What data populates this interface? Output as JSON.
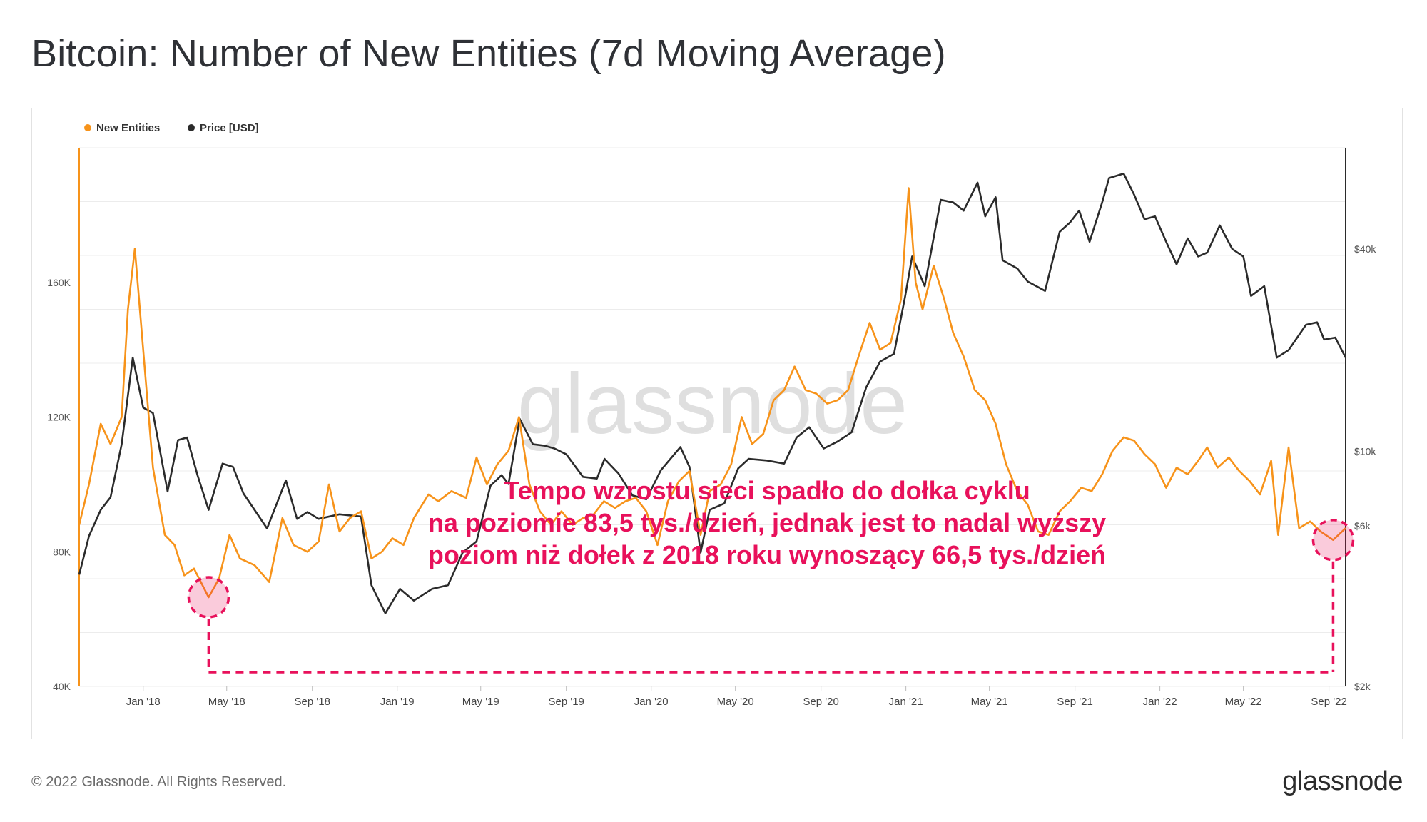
{
  "title": "Bitcoin: Number of New Entities (7d Moving Average)",
  "footer": {
    "copyright": "© 2022 Glassnode. All Rights Reserved.",
    "logo": "glassnode"
  },
  "watermark": "glassnode",
  "annotation": {
    "lines": [
      "Tempo wzrostu sieci spadło do dołka cyklu",
      "na poziomie 83,5 tys./dzień, jednak jest to nadal wyższy",
      "poziom niż dołek z 2018 roku wynoszący 66,5 tys./dzień"
    ],
    "color": "#e8115b",
    "markers": [
      {
        "date": "2018-04-05",
        "value": 66500
      },
      {
        "date": "2022-09-07",
        "value": 83500
      }
    ]
  },
  "colors": {
    "entities": "#f7931a",
    "price": "#2b2b2b",
    "annotation": "#e8115b"
  },
  "chart_data": {
    "type": "line",
    "title": "Bitcoin: Number of New Entities (7d Moving Average)",
    "legend_placement": "top-left",
    "grid": true,
    "x_range": [
      "2017-10-01",
      "2022-09-25"
    ],
    "x_ticks": [
      {
        "label": "Jan '18",
        "date": "2018-01-01"
      },
      {
        "label": "May '18",
        "date": "2018-05-01"
      },
      {
        "label": "Sep '18",
        "date": "2018-09-01"
      },
      {
        "label": "Jan '19",
        "date": "2019-01-01"
      },
      {
        "label": "May '19",
        "date": "2019-05-01"
      },
      {
        "label": "Sep '19",
        "date": "2019-09-01"
      },
      {
        "label": "Jan '20",
        "date": "2020-01-01"
      },
      {
        "label": "May '20",
        "date": "2020-05-01"
      },
      {
        "label": "Sep '20",
        "date": "2020-09-01"
      },
      {
        "label": "Jan '21",
        "date": "2021-01-01"
      },
      {
        "label": "May '21",
        "date": "2021-05-01"
      },
      {
        "label": "Sep '21",
        "date": "2021-09-01"
      },
      {
        "label": "Jan '22",
        "date": "2022-01-01"
      },
      {
        "label": "May '22",
        "date": "2022-05-01"
      },
      {
        "label": "Sep '22",
        "date": "2022-09-01"
      }
    ],
    "y_left": {
      "ylim": [
        40000,
        200000
      ],
      "ticks": [
        {
          "label": "40K",
          "value": 40000
        },
        {
          "label": "80K",
          "value": 80000
        },
        {
          "label": "120K",
          "value": 120000
        },
        {
          "label": "160K",
          "value": 160000
        }
      ]
    },
    "y_right": {
      "scale": "log",
      "ylim": [
        2000,
        80000
      ],
      "ticks": [
        {
          "label": "$2k",
          "value": 2000
        },
        {
          "label": "$6k",
          "value": 6000
        },
        {
          "label": "$10k",
          "value": 10000
        },
        {
          "label": "$40k",
          "value": 40000
        }
      ]
    },
    "series": [
      {
        "name": "New Entities",
        "axis": "left",
        "points": [
          [
            "2017-10-01",
            88000
          ],
          [
            "2017-10-15",
            100000
          ],
          [
            "2017-11-01",
            118000
          ],
          [
            "2017-11-15",
            112000
          ],
          [
            "2017-12-01",
            120000
          ],
          [
            "2017-12-10",
            152000
          ],
          [
            "2017-12-20",
            170000
          ],
          [
            "2018-01-01",
            140000
          ],
          [
            "2018-01-15",
            105000
          ],
          [
            "2018-02-01",
            85000
          ],
          [
            "2018-02-15",
            82000
          ],
          [
            "2018-03-01",
            73000
          ],
          [
            "2018-03-15",
            75000
          ],
          [
            "2018-04-05",
            66500
          ],
          [
            "2018-04-20",
            72000
          ],
          [
            "2018-05-05",
            85000
          ],
          [
            "2018-05-20",
            78000
          ],
          [
            "2018-06-10",
            76000
          ],
          [
            "2018-07-01",
            71000
          ],
          [
            "2018-07-20",
            90000
          ],
          [
            "2018-08-05",
            82000
          ],
          [
            "2018-08-25",
            80000
          ],
          [
            "2018-09-10",
            83000
          ],
          [
            "2018-09-25",
            100000
          ],
          [
            "2018-10-10",
            86000
          ],
          [
            "2018-10-25",
            90000
          ],
          [
            "2018-11-10",
            92000
          ],
          [
            "2018-11-25",
            78000
          ],
          [
            "2018-12-10",
            80000
          ],
          [
            "2018-12-25",
            84000
          ],
          [
            "2019-01-10",
            82000
          ],
          [
            "2019-01-25",
            90000
          ],
          [
            "2019-02-15",
            97000
          ],
          [
            "2019-03-01",
            95000
          ],
          [
            "2019-03-20",
            98000
          ],
          [
            "2019-04-10",
            96000
          ],
          [
            "2019-04-25",
            108000
          ],
          [
            "2019-05-10",
            100000
          ],
          [
            "2019-05-25",
            106000
          ],
          [
            "2019-06-10",
            110000
          ],
          [
            "2019-06-25",
            120000
          ],
          [
            "2019-07-10",
            100000
          ],
          [
            "2019-07-25",
            92000
          ],
          [
            "2019-08-10",
            88000
          ],
          [
            "2019-08-25",
            92000
          ],
          [
            "2019-09-10",
            88000
          ],
          [
            "2019-09-25",
            90000
          ],
          [
            "2019-10-10",
            91000
          ],
          [
            "2019-10-25",
            95000
          ],
          [
            "2019-11-10",
            93000
          ],
          [
            "2019-11-25",
            95000
          ],
          [
            "2019-12-10",
            96000
          ],
          [
            "2019-12-25",
            92000
          ],
          [
            "2020-01-10",
            82000
          ],
          [
            "2020-01-25",
            95000
          ],
          [
            "2020-02-10",
            101000
          ],
          [
            "2020-02-25",
            104000
          ],
          [
            "2020-03-12",
            85000
          ],
          [
            "2020-03-25",
            98000
          ],
          [
            "2020-04-10",
            100000
          ],
          [
            "2020-04-25",
            106000
          ],
          [
            "2020-05-10",
            120000
          ],
          [
            "2020-05-25",
            112000
          ],
          [
            "2020-06-10",
            115000
          ],
          [
            "2020-06-25",
            125000
          ],
          [
            "2020-07-10",
            128000
          ],
          [
            "2020-07-25",
            135000
          ],
          [
            "2020-08-10",
            128000
          ],
          [
            "2020-08-25",
            127000
          ],
          [
            "2020-09-10",
            124000
          ],
          [
            "2020-09-25",
            125000
          ],
          [
            "2020-10-10",
            128000
          ],
          [
            "2020-10-25",
            138000
          ],
          [
            "2020-11-10",
            148000
          ],
          [
            "2020-11-25",
            140000
          ],
          [
            "2020-12-10",
            142000
          ],
          [
            "2020-12-25",
            155000
          ],
          [
            "2021-01-05",
            188000
          ],
          [
            "2021-01-15",
            160000
          ],
          [
            "2021-01-25",
            152000
          ],
          [
            "2021-02-10",
            165000
          ],
          [
            "2021-02-25",
            155000
          ],
          [
            "2021-03-10",
            145000
          ],
          [
            "2021-03-25",
            138000
          ],
          [
            "2021-04-10",
            128000
          ],
          [
            "2021-04-25",
            125000
          ],
          [
            "2021-05-10",
            118000
          ],
          [
            "2021-05-25",
            106000
          ],
          [
            "2021-06-10",
            98000
          ],
          [
            "2021-06-25",
            94000
          ],
          [
            "2021-07-10",
            86000
          ],
          [
            "2021-07-25",
            85000
          ],
          [
            "2021-08-10",
            92000
          ],
          [
            "2021-08-25",
            95000
          ],
          [
            "2021-09-10",
            99000
          ],
          [
            "2021-09-25",
            98000
          ],
          [
            "2021-10-10",
            103000
          ],
          [
            "2021-10-25",
            110000
          ],
          [
            "2021-11-10",
            114000
          ],
          [
            "2021-11-25",
            113000
          ],
          [
            "2021-12-10",
            109000
          ],
          [
            "2021-12-25",
            106000
          ],
          [
            "2022-01-10",
            99000
          ],
          [
            "2022-01-25",
            105000
          ],
          [
            "2022-02-10",
            103000
          ],
          [
            "2022-02-25",
            107000
          ],
          [
            "2022-03-10",
            111000
          ],
          [
            "2022-03-25",
            105000
          ],
          [
            "2022-04-10",
            108000
          ],
          [
            "2022-04-25",
            104000
          ],
          [
            "2022-05-10",
            101000
          ],
          [
            "2022-05-25",
            97000
          ],
          [
            "2022-06-10",
            107000
          ],
          [
            "2022-06-20",
            85000
          ],
          [
            "2022-07-05",
            111000
          ],
          [
            "2022-07-20",
            87000
          ],
          [
            "2022-08-05",
            89000
          ],
          [
            "2022-08-20",
            86000
          ],
          [
            "2022-09-07",
            83500
          ],
          [
            "2022-09-25",
            87000
          ]
        ]
      },
      {
        "name": "Price [USD]",
        "axis": "right",
        "points": [
          [
            "2017-10-01",
            4300
          ],
          [
            "2017-10-15",
            5600
          ],
          [
            "2017-11-01",
            6700
          ],
          [
            "2017-11-15",
            7300
          ],
          [
            "2017-12-01",
            10500
          ],
          [
            "2017-12-17",
            19000
          ],
          [
            "2018-01-01",
            13500
          ],
          [
            "2018-01-15",
            13000
          ],
          [
            "2018-02-05",
            7600
          ],
          [
            "2018-02-20",
            10800
          ],
          [
            "2018-03-05",
            11000
          ],
          [
            "2018-03-20",
            8500
          ],
          [
            "2018-04-05",
            6700
          ],
          [
            "2018-04-25",
            9200
          ],
          [
            "2018-05-10",
            9000
          ],
          [
            "2018-05-25",
            7500
          ],
          [
            "2018-06-10",
            6700
          ],
          [
            "2018-06-28",
            5900
          ],
          [
            "2018-07-25",
            8200
          ],
          [
            "2018-08-10",
            6300
          ],
          [
            "2018-08-25",
            6600
          ],
          [
            "2018-09-10",
            6300
          ],
          [
            "2018-10-10",
            6500
          ],
          [
            "2018-11-10",
            6400
          ],
          [
            "2018-11-25",
            4000
          ],
          [
            "2018-12-15",
            3300
          ],
          [
            "2019-01-05",
            3900
          ],
          [
            "2019-01-25",
            3600
          ],
          [
            "2019-02-20",
            3900
          ],
          [
            "2019-03-15",
            4000
          ],
          [
            "2019-04-05",
            5000
          ],
          [
            "2019-04-25",
            5400
          ],
          [
            "2019-05-15",
            7900
          ],
          [
            "2019-05-31",
            8500
          ],
          [
            "2019-06-10",
            8000
          ],
          [
            "2019-06-26",
            12500
          ],
          [
            "2019-07-15",
            10500
          ],
          [
            "2019-08-01",
            10400
          ],
          [
            "2019-08-15",
            10200
          ],
          [
            "2019-09-01",
            9800
          ],
          [
            "2019-09-25",
            8400
          ],
          [
            "2019-10-15",
            8300
          ],
          [
            "2019-10-26",
            9500
          ],
          [
            "2019-11-15",
            8600
          ],
          [
            "2019-12-05",
            7400
          ],
          [
            "2019-12-25",
            7200
          ],
          [
            "2020-01-15",
            8800
          ],
          [
            "2020-02-12",
            10300
          ],
          [
            "2020-02-25",
            9000
          ],
          [
            "2020-03-12",
            5000
          ],
          [
            "2020-03-25",
            6700
          ],
          [
            "2020-04-15",
            7000
          ],
          [
            "2020-05-05",
            8900
          ],
          [
            "2020-05-20",
            9500
          ],
          [
            "2020-06-15",
            9400
          ],
          [
            "2020-07-10",
            9200
          ],
          [
            "2020-07-28",
            11000
          ],
          [
            "2020-08-15",
            11800
          ],
          [
            "2020-09-05",
            10200
          ],
          [
            "2020-09-25",
            10700
          ],
          [
            "2020-10-15",
            11400
          ],
          [
            "2020-11-05",
            15500
          ],
          [
            "2020-11-25",
            18500
          ],
          [
            "2020-12-15",
            19500
          ],
          [
            "2020-12-31",
            29000
          ],
          [
            "2021-01-10",
            38000
          ],
          [
            "2021-01-28",
            31000
          ],
          [
            "2021-02-20",
            56000
          ],
          [
            "2021-03-10",
            55000
          ],
          [
            "2021-03-25",
            52000
          ],
          [
            "2021-04-14",
            63000
          ],
          [
            "2021-04-25",
            50000
          ],
          [
            "2021-05-10",
            57000
          ],
          [
            "2021-05-20",
            37000
          ],
          [
            "2021-06-10",
            35000
          ],
          [
            "2021-06-25",
            32000
          ],
          [
            "2021-07-20",
            30000
          ],
          [
            "2021-08-10",
            45000
          ],
          [
            "2021-08-25",
            48000
          ],
          [
            "2021-09-07",
            52000
          ],
          [
            "2021-09-22",
            42000
          ],
          [
            "2021-10-10",
            55000
          ],
          [
            "2021-10-20",
            65000
          ],
          [
            "2021-11-10",
            67000
          ],
          [
            "2021-11-25",
            58000
          ],
          [
            "2021-12-10",
            49000
          ],
          [
            "2021-12-25",
            50000
          ],
          [
            "2022-01-10",
            42000
          ],
          [
            "2022-01-25",
            36000
          ],
          [
            "2022-02-10",
            43000
          ],
          [
            "2022-02-25",
            38000
          ],
          [
            "2022-03-10",
            39000
          ],
          [
            "2022-03-28",
            47000
          ],
          [
            "2022-04-15",
            40000
          ],
          [
            "2022-05-01",
            38000
          ],
          [
            "2022-05-12",
            29000
          ],
          [
            "2022-05-31",
            31000
          ],
          [
            "2022-06-18",
            19000
          ],
          [
            "2022-07-05",
            20000
          ],
          [
            "2022-07-30",
            23800
          ],
          [
            "2022-08-15",
            24200
          ],
          [
            "2022-08-25",
            21500
          ],
          [
            "2022-09-10",
            21800
          ],
          [
            "2022-09-25",
            19000
          ]
        ]
      }
    ]
  }
}
